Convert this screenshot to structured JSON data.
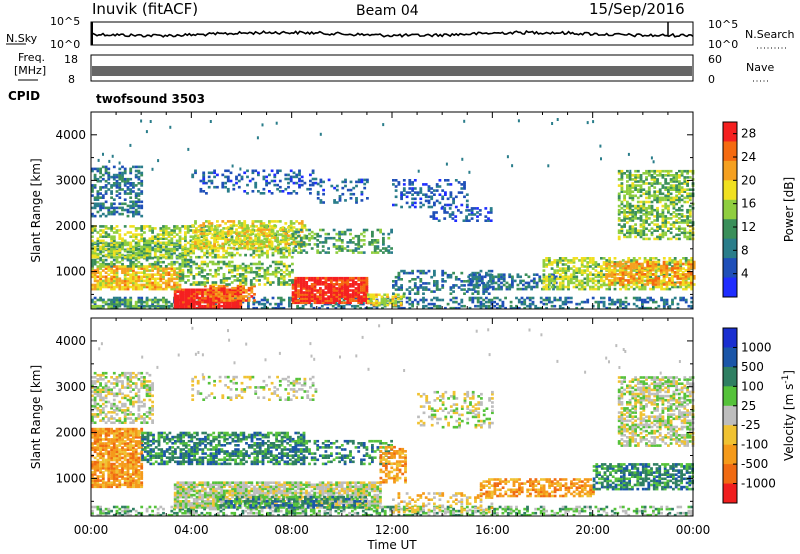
{
  "header": {
    "station": "Inuvik (fitACF)",
    "beam": "Beam 04",
    "date": "15/Sep/2016"
  },
  "noise_panel": {
    "left_label": "N.Sky",
    "right_label": "N.Search",
    "left_ticks": [
      "10^5",
      "10^0"
    ],
    "right_ticks": [
      "10^5",
      "10^0"
    ]
  },
  "freq_panel": {
    "left_label_1": "Freq.",
    "left_label_2": "[MHz]",
    "right_label": "Nave",
    "left_ticks": [
      "18",
      "8"
    ],
    "right_ticks": [
      "60",
      "0"
    ]
  },
  "cpid": {
    "label": "CPID",
    "value": "twofsound 3503"
  },
  "colors": {
    "power": [
      "#1f2dff",
      "#1f4fb8",
      "#2a7d8a",
      "#3a8f5a",
      "#8fce3f",
      "#f0e020",
      "#f5a020",
      "#f56a10",
      "#f52020"
    ],
    "velocity": [
      "#1a2fd0",
      "#1b56a8",
      "#2f7f62",
      "#55c23a",
      "#bdbdbd",
      "#f0c232",
      "#f59a1a",
      "#f06a12",
      "#f01e1e"
    ]
  },
  "chart_data": [
    {
      "type": "heatmap",
      "name": "power",
      "ylabel": "Slant Range [km]",
      "xlabel": "",
      "ylim": [
        180,
        4500
      ],
      "yticks": [
        1000,
        2000,
        3000,
        4000
      ],
      "xlim": [
        0,
        24
      ],
      "colorbar_label": "Power [dB]",
      "colorbar_ticks": [
        4,
        8,
        12,
        16,
        20,
        24,
        28
      ],
      "colorbar_range": [
        0,
        30
      ],
      "regions": [
        {
          "t0": 0.0,
          "t1": 24.0,
          "r0": 180,
          "r1": 450,
          "v": 8,
          "d": 0.4
        },
        {
          "t0": 0.0,
          "t1": 3.0,
          "r0": 180,
          "r1": 400,
          "v": 12,
          "d": 0.7
        },
        {
          "t0": 3.3,
          "t1": 6.0,
          "r0": 180,
          "r1": 600,
          "v": 29,
          "d": 0.95
        },
        {
          "t0": 4.5,
          "t1": 6.5,
          "r0": 350,
          "r1": 700,
          "v": 24,
          "d": 0.6
        },
        {
          "t0": 8.0,
          "t1": 11.0,
          "r0": 300,
          "r1": 850,
          "v": 28,
          "d": 0.9
        },
        {
          "t0": 11.0,
          "t1": 12.5,
          "r0": 250,
          "r1": 500,
          "v": 18,
          "d": 0.6
        },
        {
          "t0": 0.0,
          "t1": 3.5,
          "r0": 600,
          "r1": 1100,
          "v": 20,
          "d": 0.75
        },
        {
          "t0": 3.5,
          "t1": 8.0,
          "r0": 700,
          "r1": 1200,
          "v": 14,
          "d": 0.5
        },
        {
          "t0": 0.0,
          "t1": 4.0,
          "r0": 1100,
          "r1": 1600,
          "v": 12,
          "d": 0.5
        },
        {
          "t0": 0.0,
          "t1": 8.0,
          "r0": 1300,
          "r1": 2000,
          "v": 16,
          "d": 0.55
        },
        {
          "t0": 4.0,
          "t1": 8.5,
          "r0": 1500,
          "r1": 2100,
          "v": 18,
          "d": 0.5
        },
        {
          "t0": 8.0,
          "t1": 12.0,
          "r0": 1400,
          "r1": 1900,
          "v": 12,
          "d": 0.4
        },
        {
          "t0": 12.0,
          "t1": 16.0,
          "r0": 500,
          "r1": 1000,
          "v": 8,
          "d": 0.35
        },
        {
          "t0": 15.0,
          "t1": 18.5,
          "r0": 600,
          "r1": 950,
          "v": 8,
          "d": 0.55
        },
        {
          "t0": 18.0,
          "t1": 24.0,
          "r0": 600,
          "r1": 1300,
          "v": 16,
          "d": 0.6
        },
        {
          "t0": 20.5,
          "t1": 24.0,
          "r0": 700,
          "r1": 1200,
          "v": 22,
          "d": 0.6
        },
        {
          "t0": 0.0,
          "t1": 2.0,
          "r0": 2200,
          "r1": 3300,
          "v": 8,
          "d": 0.5
        },
        {
          "t0": 4.0,
          "t1": 9.0,
          "r0": 2700,
          "r1": 3200,
          "v": 6,
          "d": 0.25
        },
        {
          "t0": 9.0,
          "t1": 11.0,
          "r0": 2500,
          "r1": 3000,
          "v": 6,
          "d": 0.2
        },
        {
          "t0": 12.0,
          "t1": 15.0,
          "r0": 2400,
          "r1": 3000,
          "v": 6,
          "d": 0.3
        },
        {
          "t0": 13.5,
          "t1": 16.0,
          "r0": 2100,
          "r1": 2400,
          "v": 6,
          "d": 0.35
        },
        {
          "t0": 21.0,
          "t1": 24.0,
          "r0": 1700,
          "r1": 3200,
          "v": 14,
          "d": 0.55
        }
      ]
    },
    {
      "type": "heatmap",
      "name": "velocity",
      "ylabel": "Slant Range [km]",
      "xlabel": "Time UT",
      "ylim": [
        180,
        4500
      ],
      "yticks": [
        1000,
        2000,
        3000,
        4000
      ],
      "xlim": [
        0,
        24
      ],
      "xtick_labels": [
        "00:00",
        "04:00",
        "08:00",
        "12:00",
        "16:00",
        "20:00",
        "00:00"
      ],
      "colorbar_label": "Velocity [m s^-1]",
      "colorbar_ticks": [
        "1000",
        "500",
        "100",
        "25",
        "-25",
        "-100",
        "-500",
        "-1000"
      ],
      "regions": [
        {
          "t0": 0.0,
          "t1": 24.0,
          "r0": 180,
          "r1": 400,
          "v": 3,
          "d": 0.45
        },
        {
          "t0": 0.0,
          "t1": 2.0,
          "r0": 800,
          "r1": 2100,
          "v": 6,
          "d": 0.85
        },
        {
          "t0": 0.0,
          "t1": 2.5,
          "r0": 2200,
          "r1": 3300,
          "v": 4,
          "d": 0.55
        },
        {
          "t0": 2.0,
          "t1": 8.5,
          "r0": 1300,
          "r1": 2000,
          "v": 2,
          "d": 0.6
        },
        {
          "t0": 3.3,
          "t1": 11.5,
          "r0": 350,
          "r1": 900,
          "v": 4,
          "d": 0.85
        },
        {
          "t0": 5.0,
          "t1": 11.0,
          "r0": 350,
          "r1": 600,
          "v": 2,
          "d": 0.6
        },
        {
          "t0": 8.0,
          "t1": 12.0,
          "r0": 1300,
          "r1": 1800,
          "v": 2,
          "d": 0.35
        },
        {
          "t0": 11.5,
          "t1": 12.5,
          "r0": 900,
          "r1": 1700,
          "v": 6,
          "d": 0.5
        },
        {
          "t0": 12.0,
          "t1": 16.0,
          "r0": 250,
          "r1": 700,
          "v": 5,
          "d": 0.35
        },
        {
          "t0": 15.5,
          "t1": 20.0,
          "r0": 600,
          "r1": 1000,
          "v": 6,
          "d": 0.55
        },
        {
          "t0": 20.0,
          "t1": 24.0,
          "r0": 750,
          "r1": 1300,
          "v": 2,
          "d": 0.65
        },
        {
          "t0": 21.0,
          "t1": 24.0,
          "r0": 1700,
          "r1": 3200,
          "v": 4,
          "d": 0.6
        },
        {
          "t0": 4.0,
          "t1": 9.0,
          "r0": 2700,
          "r1": 3200,
          "v": 4,
          "d": 0.25
        },
        {
          "t0": 13.0,
          "t1": 16.0,
          "r0": 2100,
          "r1": 2900,
          "v": 4,
          "d": 0.3
        }
      ]
    }
  ]
}
